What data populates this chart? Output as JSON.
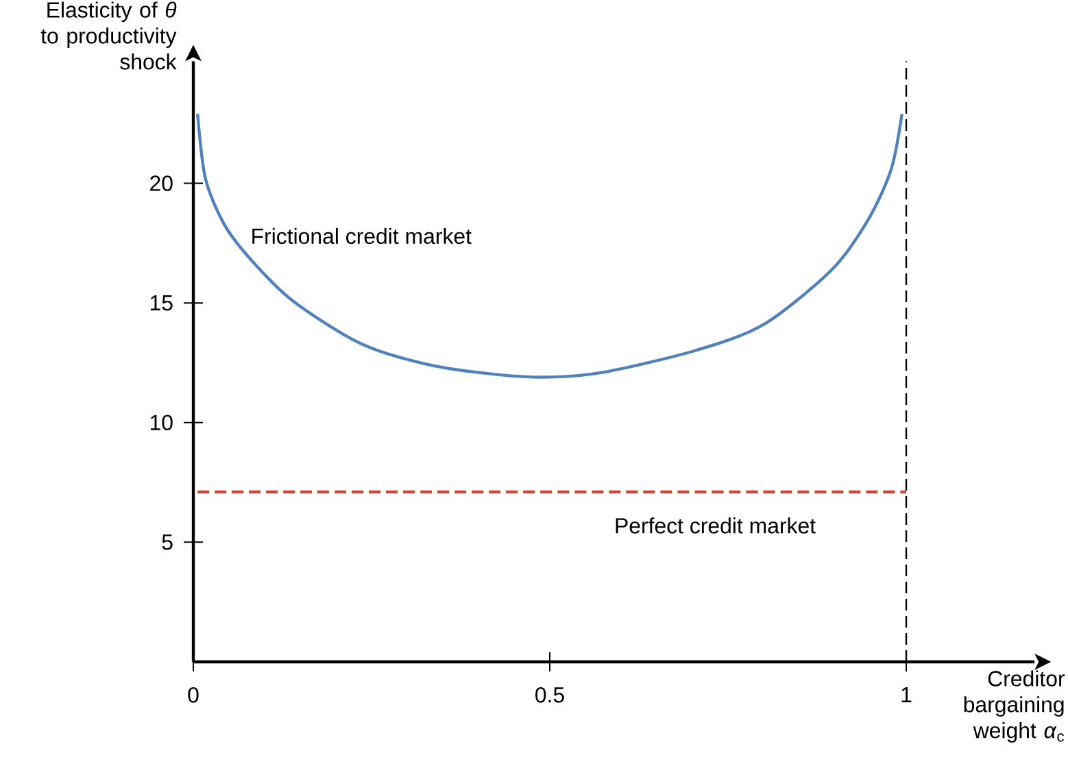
{
  "chart_data": {
    "type": "line",
    "xlabel": "Creditor bargaining weight *α*$_{c}$",
    "ylabel": "Elasticity of *θ* to productivity shock",
    "series": [
      {
        "name": "Frictional credit market",
        "color": "#4f81bd",
        "line_style": "solid",
        "x": [
          0.006,
          0.017,
          0.043,
          0.081,
          0.139,
          0.235,
          0.333,
          0.428,
          0.5,
          0.575,
          0.703,
          0.8,
          0.896,
          0.947,
          0.979,
          0.994
        ],
        "values": [
          22.9,
          20.2,
          18.3,
          16.8,
          15.1,
          13.3,
          12.4,
          12.0,
          11.9,
          12.1,
          13.0,
          14.1,
          16.4,
          18.5,
          20.6,
          22.9
        ]
      },
      {
        "name": "Perfect credit market",
        "color": "#c9473d",
        "line_style": "dashed",
        "x": [
          0.006,
          1.0
        ],
        "values": [
          7.1,
          7.1
        ]
      }
    ],
    "xlim": [
      0,
      1.18
    ],
    "ylim": [
      0,
      25.1
    ],
    "xticks": [
      0,
      0.5,
      1
    ],
    "yticks": [
      5,
      10,
      15,
      20
    ],
    "ref_lines": [
      {
        "axis": "x",
        "value": 1,
        "color": "#000000",
        "line_style": "dashed"
      }
    ],
    "marker": "none",
    "grid": false
  }
}
